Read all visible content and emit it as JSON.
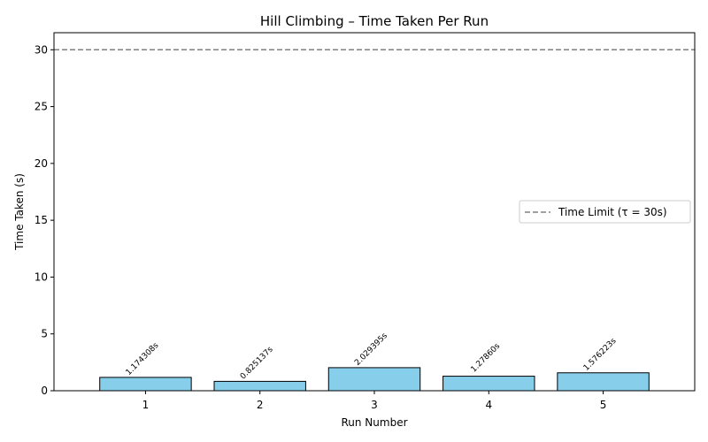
{
  "chart_data": {
    "type": "bar",
    "title": "Hill Climbing – Time Taken Per Run",
    "xlabel": "Run Number",
    "ylabel": "Time Taken (s)",
    "categories": [
      "1",
      "2",
      "3",
      "4",
      "5"
    ],
    "values": [
      1.174308,
      0.825137,
      2.029395,
      1.2786,
      1.576223
    ],
    "value_labels": [
      "1.174308s",
      "0.825137s",
      "2.029395s",
      "1.27860s",
      "1.576223s"
    ],
    "ylim": [
      0,
      31.5
    ],
    "yticks": [
      0,
      5,
      10,
      15,
      20,
      25,
      30
    ],
    "bar_color": "#87ceeb",
    "bar_edge_color": "#000000",
    "reference_line": {
      "value": 30,
      "label": "Time Limit (τ = 30s)",
      "color": "#808080",
      "style": "dashed"
    },
    "legend_position": "center-right",
    "grid": false
  }
}
